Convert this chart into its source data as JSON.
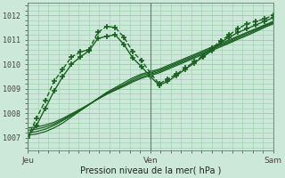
{
  "xlabel": "Pression niveau de la mer( hPa )",
  "bg_color": "#cce8d8",
  "grid_color": "#99ccaa",
  "line_color": "#1a6020",
  "ylim": [
    1006.5,
    1012.5
  ],
  "xtick_labels": [
    "Jeu",
    "Ven",
    "Sam"
  ],
  "xtick_positions": [
    0,
    48,
    96
  ],
  "ytick_values": [
    1007,
    1008,
    1009,
    1010,
    1011,
    1012
  ],
  "series": [
    [
      1007.0,
      1007.8,
      1008.5,
      1009.3,
      1009.8,
      1010.3,
      1010.5,
      1010.6,
      1011.3,
      1011.55,
      1011.5,
      1011.1,
      1010.5,
      1010.15,
      1009.65,
      1009.2,
      1009.4,
      1009.6,
      1009.85,
      1010.1,
      1010.35,
      1010.65,
      1010.95,
      1011.2,
      1011.45,
      1011.65,
      1011.75,
      1011.85,
      1012.0
    ],
    [
      1007.05,
      1007.5,
      1008.2,
      1008.9,
      1009.5,
      1010.0,
      1010.3,
      1010.55,
      1011.05,
      1011.15,
      1011.2,
      1010.8,
      1010.25,
      1009.9,
      1009.5,
      1009.15,
      1009.3,
      1009.55,
      1009.8,
      1010.05,
      1010.3,
      1010.55,
      1010.9,
      1011.1,
      1011.3,
      1011.45,
      1011.6,
      1011.75,
      1011.9
    ],
    [
      1007.1,
      1007.15,
      1007.25,
      1007.4,
      1007.6,
      1007.85,
      1008.1,
      1008.35,
      1008.6,
      1008.85,
      1009.05,
      1009.25,
      1009.45,
      1009.6,
      1009.7,
      1009.8,
      1009.95,
      1010.1,
      1010.25,
      1010.4,
      1010.55,
      1010.7,
      1010.85,
      1011.0,
      1011.15,
      1011.3,
      1011.45,
      1011.6,
      1011.75
    ],
    [
      1007.2,
      1007.25,
      1007.35,
      1007.5,
      1007.7,
      1007.9,
      1008.12,
      1008.35,
      1008.6,
      1008.82,
      1009.0,
      1009.18,
      1009.38,
      1009.55,
      1009.65,
      1009.75,
      1009.9,
      1010.05,
      1010.2,
      1010.35,
      1010.5,
      1010.65,
      1010.8,
      1010.95,
      1011.12,
      1011.28,
      1011.42,
      1011.58,
      1011.72
    ],
    [
      1007.3,
      1007.35,
      1007.44,
      1007.56,
      1007.74,
      1007.94,
      1008.14,
      1008.36,
      1008.58,
      1008.8,
      1008.97,
      1009.14,
      1009.32,
      1009.48,
      1009.59,
      1009.7,
      1009.85,
      1010.0,
      1010.15,
      1010.3,
      1010.45,
      1010.6,
      1010.76,
      1010.9,
      1011.07,
      1011.22,
      1011.38,
      1011.54,
      1011.68
    ],
    [
      1007.4,
      1007.44,
      1007.52,
      1007.63,
      1007.79,
      1007.98,
      1008.17,
      1008.37,
      1008.57,
      1008.77,
      1008.94,
      1009.1,
      1009.28,
      1009.43,
      1009.54,
      1009.65,
      1009.8,
      1009.95,
      1010.1,
      1010.25,
      1010.4,
      1010.56,
      1010.71,
      1010.86,
      1011.02,
      1011.17,
      1011.33,
      1011.5,
      1011.65
    ]
  ],
  "series_styles": [
    {
      "marker": "+",
      "lw": 1.0,
      "ms": 4.5,
      "ls": "--",
      "mew": 1.2
    },
    {
      "marker": "+",
      "lw": 1.0,
      "ms": 4.5,
      "ls": "-",
      "mew": 1.2
    },
    {
      "marker": null,
      "lw": 0.9,
      "ms": 3,
      "ls": "-",
      "mew": 0.8
    },
    {
      "marker": null,
      "lw": 0.9,
      "ms": 3,
      "ls": "-",
      "mew": 0.8
    },
    {
      "marker": null,
      "lw": 0.9,
      "ms": 3,
      "ls": "-",
      "mew": 0.8
    },
    {
      "marker": null,
      "lw": 0.9,
      "ms": 3,
      "ls": "-",
      "mew": 0.8
    }
  ]
}
